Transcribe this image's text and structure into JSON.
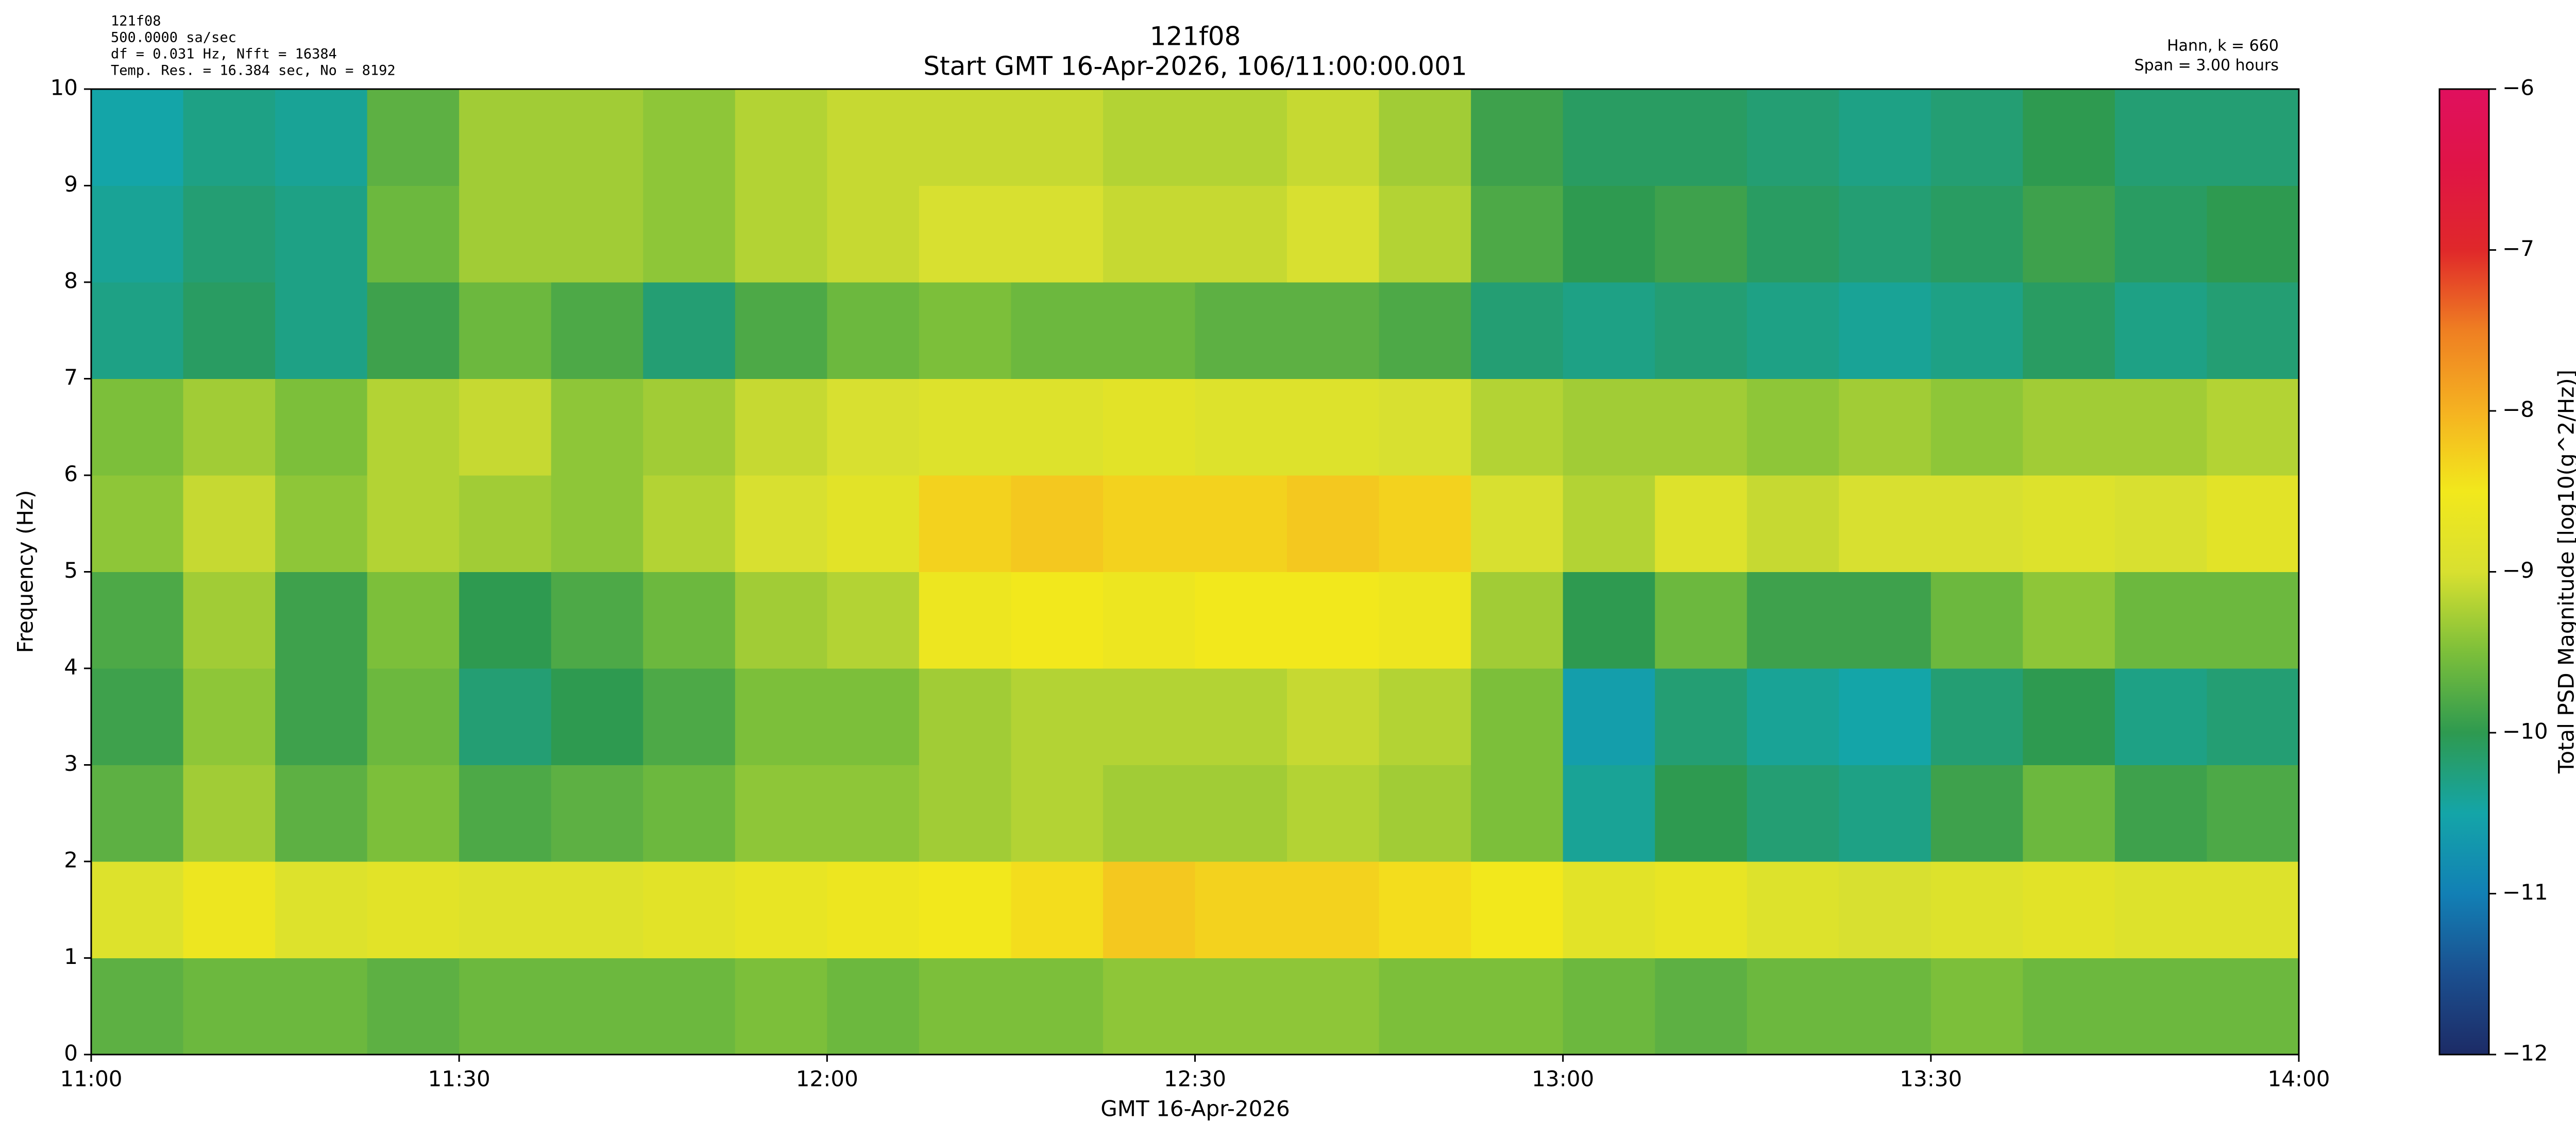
{
  "chart_data": {
    "type": "heatmap",
    "title": "121f08",
    "subtitle": "Start GMT 16-Apr-2026, 106/11:00:00.001",
    "annotations_left": [
      "121f08",
      "500.0000 sa/sec",
      "df = 0.031 Hz,  Nfft = 16384",
      "Temp. Res. = 16.384 sec, No = 8192"
    ],
    "annotations_right": [
      "Hann, k = 660",
      "Span = 3.00 hours"
    ],
    "xlabel": "GMT 16-Apr-2026",
    "ylabel": "Frequency (Hz)",
    "xlim": [
      0,
      180
    ],
    "xticks": [
      {
        "value": 0,
        "label": "11:00"
      },
      {
        "value": 30,
        "label": "11:30"
      },
      {
        "value": 60,
        "label": "12:00"
      },
      {
        "value": 90,
        "label": "12:30"
      },
      {
        "value": 120,
        "label": "13:00"
      },
      {
        "value": 150,
        "label": "13:30"
      },
      {
        "value": 180,
        "label": "14:00"
      }
    ],
    "ylim": [
      0,
      10
    ],
    "yticks": [
      0,
      1,
      2,
      3,
      4,
      5,
      6,
      7,
      8,
      9,
      10
    ],
    "x_bins": [
      0,
      7.5,
      15,
      22.5,
      30,
      37.5,
      45,
      52.5,
      60,
      67.5,
      75,
      82.5,
      90,
      97.5,
      105,
      112.5,
      120,
      127.5,
      135,
      142.5,
      150,
      157.5,
      165,
      172.5,
      180
    ],
    "y_bins": [
      0,
      1,
      2,
      3,
      4,
      5,
      6,
      7,
      8,
      9,
      10
    ],
    "values": [
      [
        -9.7,
        -9.6,
        -9.6,
        -9.7,
        -9.6,
        -9.6,
        -9.6,
        -9.5,
        -9.6,
        -9.5,
        -9.5,
        -9.4,
        -9.4,
        -9.4,
        -9.5,
        -9.5,
        -9.6,
        -9.7,
        -9.6,
        -9.6,
        -9.5,
        -9.6,
        -9.6,
        -9.6
      ],
      [
        -8.9,
        -8.6,
        -8.9,
        -8.8,
        -8.9,
        -8.9,
        -8.8,
        -8.7,
        -8.6,
        -8.5,
        -8.4,
        -8.2,
        -8.3,
        -8.3,
        -8.4,
        -8.5,
        -8.8,
        -8.7,
        -8.9,
        -9.0,
        -8.9,
        -8.8,
        -8.9,
        -8.9
      ],
      [
        -9.7,
        -9.3,
        -9.7,
        -9.5,
        -9.8,
        -9.7,
        -9.6,
        -9.4,
        -9.4,
        -9.3,
        -9.2,
        -9.3,
        -9.3,
        -9.2,
        -9.3,
        -9.5,
        -10.4,
        -10.0,
        -10.2,
        -10.3,
        -9.9,
        -9.6,
        -9.9,
        -9.8
      ],
      [
        -9.9,
        -9.4,
        -9.9,
        -9.6,
        -10.2,
        -10.0,
        -9.8,
        -9.5,
        -9.5,
        -9.3,
        -9.2,
        -9.2,
        -9.2,
        -9.1,
        -9.2,
        -9.5,
        -10.6,
        -10.2,
        -10.4,
        -10.5,
        -10.2,
        -10.0,
        -10.3,
        -10.2
      ],
      [
        -9.8,
        -9.3,
        -9.9,
        -9.5,
        -10.0,
        -9.8,
        -9.6,
        -9.3,
        -9.2,
        -8.6,
        -8.5,
        -8.6,
        -8.5,
        -8.5,
        -8.6,
        -9.3,
        -10.0,
        -9.6,
        -9.9,
        -9.9,
        -9.6,
        -9.4,
        -9.6,
        -9.6
      ],
      [
        -9.4,
        -9.1,
        -9.4,
        -9.2,
        -9.3,
        -9.4,
        -9.2,
        -9.0,
        -8.8,
        -8.3,
        -8.2,
        -8.3,
        -8.3,
        -8.2,
        -8.3,
        -9.0,
        -9.2,
        -8.9,
        -9.1,
        -9.0,
        -9.0,
        -8.9,
        -9.0,
        -8.8
      ],
      [
        -9.5,
        -9.3,
        -9.5,
        -9.2,
        -9.1,
        -9.4,
        -9.3,
        -9.1,
        -9.0,
        -8.9,
        -8.9,
        -8.8,
        -8.9,
        -8.9,
        -9.0,
        -9.2,
        -9.3,
        -9.3,
        -9.4,
        -9.3,
        -9.4,
        -9.3,
        -9.3,
        -9.2
      ],
      [
        -10.3,
        -10.1,
        -10.3,
        -9.9,
        -9.6,
        -9.8,
        -10.2,
        -9.8,
        -9.6,
        -9.5,
        -9.6,
        -9.6,
        -9.7,
        -9.7,
        -9.8,
        -10.2,
        -10.3,
        -10.2,
        -10.3,
        -10.4,
        -10.3,
        -10.1,
        -10.3,
        -10.2
      ],
      [
        -10.4,
        -10.2,
        -10.3,
        -9.6,
        -9.3,
        -9.3,
        -9.4,
        -9.2,
        -9.1,
        -9.0,
        -9.0,
        -9.1,
        -9.1,
        -9.0,
        -9.2,
        -9.8,
        -10.0,
        -9.9,
        -10.1,
        -10.2,
        -10.1,
        -9.9,
        -10.1,
        -10.0
      ],
      [
        -10.5,
        -10.3,
        -10.4,
        -9.7,
        -9.3,
        -9.3,
        -9.4,
        -9.2,
        -9.1,
        -9.1,
        -9.1,
        -9.2,
        -9.2,
        -9.1,
        -9.3,
        -9.9,
        -10.1,
        -10.1,
        -10.2,
        -10.3,
        -10.2,
        -10.0,
        -10.2,
        -10.2
      ]
    ],
    "colorbar_label": "Total PSD Magnitude [log10(g^2/Hz)]",
    "clim": [
      -12,
      -6
    ],
    "cticks": [
      {
        "value": -12,
        "label": "−12"
      },
      {
        "value": -11,
        "label": "−11"
      },
      {
        "value": -10,
        "label": "−10"
      },
      {
        "value": -9,
        "label": "−9"
      },
      {
        "value": -8,
        "label": "−8"
      },
      {
        "value": -7,
        "label": "−7"
      },
      {
        "value": -6,
        "label": "−6"
      }
    ],
    "colormap": [
      "#1c2b66",
      "#1b4f8f",
      "#1280b5",
      "#14a5a8",
      "#2e9a50",
      "#7cbf3a",
      "#d8e030",
      "#f2e81c",
      "#f5b221",
      "#ef7f22",
      "#e0282a",
      "#e01545",
      "#e0105e"
    ],
    "title_color": "#000080"
  }
}
